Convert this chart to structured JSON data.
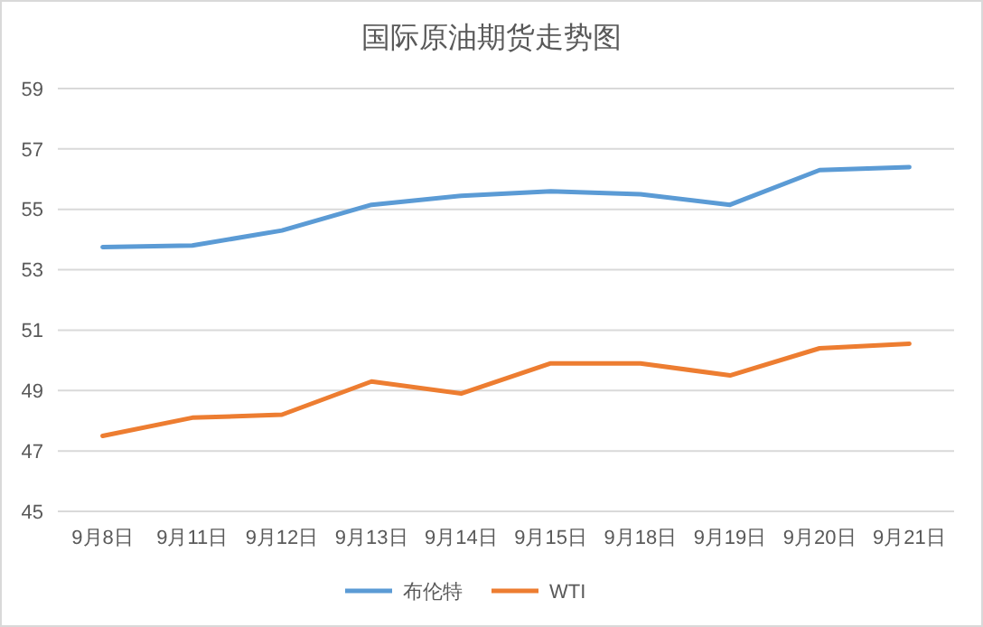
{
  "chart_data": {
    "type": "line",
    "title": "国际原油期货走势图",
    "categories": [
      "9月8日",
      "9月11日",
      "9月12日",
      "9月13日",
      "9月14日",
      "9月15日",
      "9月18日",
      "9月19日",
      "9月20日",
      "9月21日"
    ],
    "series": [
      {
        "name": "布伦特",
        "color": "#5b9bd5",
        "values": [
          53.75,
          53.8,
          54.3,
          55.15,
          55.45,
          55.6,
          55.5,
          55.15,
          56.3,
          56.4
        ]
      },
      {
        "name": "WTI",
        "color": "#ed7d31",
        "values": [
          47.5,
          48.1,
          48.2,
          49.3,
          48.9,
          49.9,
          49.9,
          49.5,
          50.4,
          50.55
        ]
      }
    ],
    "ylim": [
      45,
      59
    ],
    "yticks": [
      45,
      47,
      49,
      51,
      53,
      55,
      57,
      59
    ],
    "grid": "y",
    "legend": "bottom",
    "marker": "none",
    "line_style": "solid"
  }
}
